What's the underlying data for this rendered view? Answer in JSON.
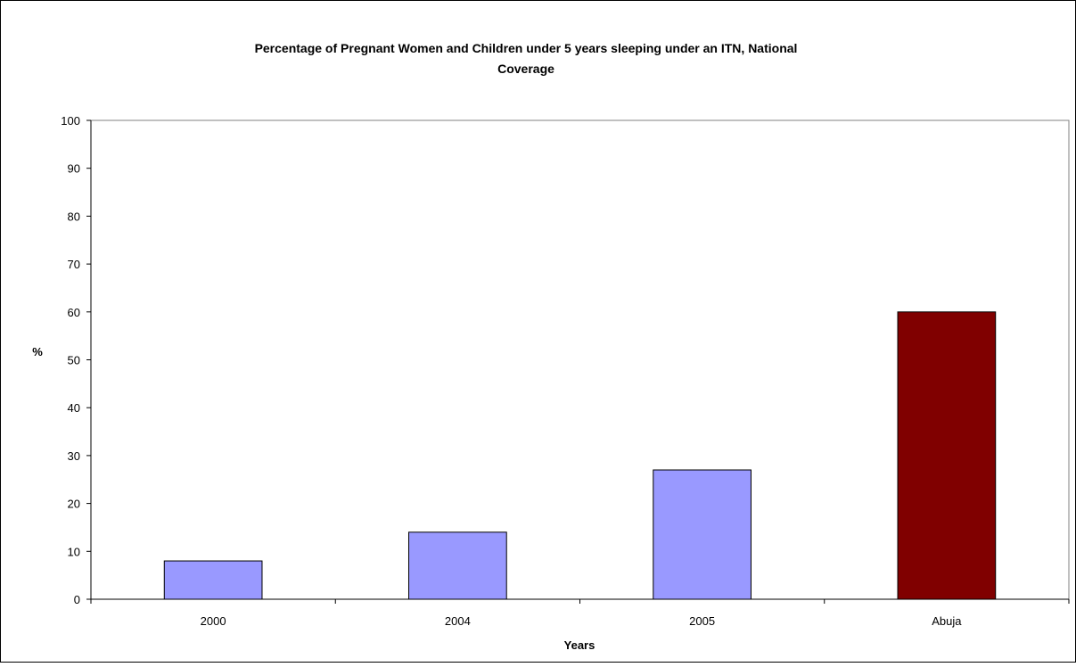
{
  "chart_data": {
    "type": "bar",
    "title_line1": "Percentage of Pregnant Women and Children under 5 years sleeping under an ITN, National",
    "title_line2": "Coverage",
    "xlabel": "Years",
    "ylabel": "%",
    "categories": [
      "2000",
      "2004",
      "2005",
      "Abuja"
    ],
    "values": [
      8,
      14,
      27,
      60
    ],
    "bar_colors": [
      "#9999ff",
      "#9999ff",
      "#9999ff",
      "#800000"
    ],
    "ylim": [
      0,
      100
    ],
    "yticks": [
      0,
      10,
      20,
      30,
      40,
      50,
      60,
      70,
      80,
      90,
      100
    ],
    "grid": false,
    "legend": "none"
  }
}
